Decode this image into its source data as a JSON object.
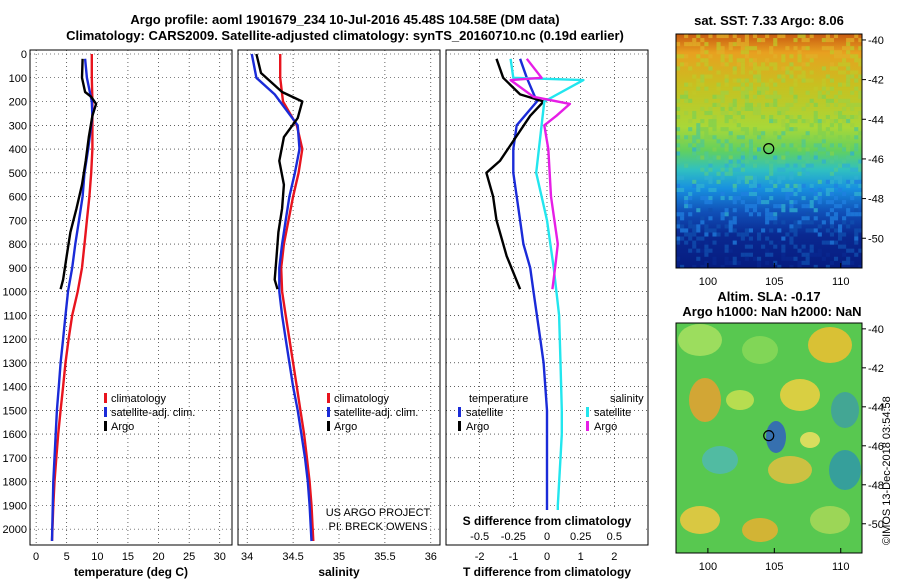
{
  "header": {
    "title_line1": "Argo profile: aoml 1901679_234 10-Jul-2016 45.48S 104.58E (DM data)",
    "title_line2": "Climatology: CARS2009. Satellite-adjusted climatology: synTS_20160710.nc (0.19d earlier)"
  },
  "colors": {
    "climatology": "#e8141e",
    "satellite": "#1a2bd8",
    "argo": "#000000",
    "satellite_salinity": "#22e6ee",
    "argo_salinity": "#e61ee6"
  },
  "chart_data": [
    {
      "type": "line",
      "name": "temperature",
      "xlabel": "temperature (deg C)",
      "xlim": [
        -1,
        32
      ],
      "xticks": [
        "0",
        "5",
        "10",
        "15",
        "20",
        "25",
        "30"
      ],
      "ylim": [
        0,
        2050
      ],
      "yticks": [
        "0",
        "100",
        "200",
        "300",
        "400",
        "500",
        "600",
        "700",
        "800",
        "900",
        "1000",
        "1100",
        "1200",
        "1300",
        "1400",
        "1500",
        "1600",
        "1700",
        "1800",
        "1900",
        "2000"
      ],
      "series": [
        {
          "name": "climatology",
          "x": [
            9.1,
            9.1,
            9.2,
            9.2,
            9.2,
            9.0,
            8.7,
            8.3,
            7.9,
            7.5,
            6.8,
            5.9,
            5.3,
            4.8,
            4.4,
            4.0,
            3.6,
            3.3,
            3.0,
            2.8,
            2.6
          ],
          "y": [
            0,
            100,
            200,
            300,
            400,
            500,
            600,
            700,
            800,
            900,
            1000,
            1100,
            1200,
            1300,
            1400,
            1500,
            1600,
            1700,
            1800,
            1900,
            2050
          ]
        },
        {
          "name": "satellite-adj. clim.",
          "x": [
            8.0,
            8.3,
            9.1,
            9.2,
            8.5,
            7.9,
            7.6,
            7.0,
            6.4,
            5.9,
            5.2,
            4.8,
            4.4,
            4.0,
            3.7,
            3.4,
            3.2,
            3.0,
            2.8,
            2.6
          ],
          "y": [
            20,
            100,
            200,
            260,
            400,
            500,
            600,
            700,
            800,
            900,
            1000,
            1100,
            1200,
            1300,
            1400,
            1500,
            1600,
            1700,
            1800,
            2050
          ]
        },
        {
          "name": "Argo",
          "x": [
            7.6,
            7.5,
            8.0,
            9.0,
            9.8,
            9.2,
            8.6,
            8.1,
            7.5,
            6.6,
            5.6,
            5.0,
            4.4,
            4.0
          ],
          "y": [
            20,
            100,
            160,
            180,
            210,
            260,
            350,
            450,
            550,
            650,
            750,
            850,
            950,
            990
          ]
        }
      ],
      "legend": [
        "climatology",
        "satellite-adj. clim.",
        "Argo"
      ]
    },
    {
      "type": "line",
      "name": "salinity",
      "xlabel": "salinity",
      "xlim": [
        33.9,
        36.1
      ],
      "xticks": [
        "34",
        "34.5",
        "35",
        "35.5",
        "36"
      ],
      "ylim": [
        0,
        2050
      ],
      "series": [
        {
          "name": "climatology",
          "x": [
            34.36,
            34.36,
            34.39,
            34.54,
            34.6,
            34.56,
            34.5,
            34.45,
            34.4,
            34.37,
            34.38,
            34.42,
            34.46,
            34.5,
            34.54,
            34.58,
            34.62,
            34.65,
            34.68,
            34.7,
            34.72
          ],
          "y": [
            0,
            100,
            200,
            300,
            400,
            500,
            600,
            700,
            800,
            900,
            1000,
            1100,
            1200,
            1300,
            1400,
            1500,
            1600,
            1700,
            1800,
            1900,
            2050
          ]
        },
        {
          "name": "satellite-adj. clim.",
          "x": [
            34.05,
            34.1,
            34.3,
            34.55,
            34.57,
            34.52,
            34.46,
            34.42,
            34.38,
            34.35,
            34.35,
            34.38,
            34.42,
            34.46,
            34.5,
            34.55,
            34.59,
            34.63,
            34.66,
            34.68,
            34.7
          ],
          "y": [
            0,
            100,
            170,
            300,
            400,
            500,
            600,
            700,
            800,
            900,
            1000,
            1100,
            1200,
            1300,
            1400,
            1500,
            1600,
            1700,
            1800,
            1900,
            2050
          ]
        },
        {
          "name": "Argo",
          "x": [
            34.1,
            34.15,
            34.38,
            34.6,
            34.55,
            34.4,
            34.35,
            34.4,
            34.38,
            34.34,
            34.32,
            34.3,
            34.33
          ],
          "y": [
            0,
            80,
            160,
            200,
            270,
            350,
            450,
            550,
            650,
            750,
            850,
            950,
            990
          ]
        }
      ],
      "legend": [
        "climatology",
        "satellite-adj. clim.",
        "Argo"
      ],
      "notes": [
        "US ARGO PROJECT",
        "PI: BRECK OWENS"
      ]
    },
    {
      "type": "line",
      "name": "difference",
      "xlabel": "T difference from climatology",
      "xlim": [
        -3,
        3
      ],
      "xticks": [
        "-2",
        "-1",
        "0",
        "1",
        "2"
      ],
      "s_label": "S difference from climatology",
      "s_xticks": [
        "-0.5",
        "-0.25",
        "0",
        "0.25",
        "0.5"
      ],
      "ylim": [
        0,
        2050
      ],
      "series": [
        {
          "name": "temperature satellite",
          "x": [
            -0.8,
            -0.6,
            -0.3,
            -0.9,
            -1.0,
            -1.0,
            -0.9,
            -0.8,
            -0.7,
            -0.5,
            -0.4,
            -0.3,
            -0.2,
            -0.1,
            -0.05,
            0.0,
            0.0,
            0.0,
            0.0
          ],
          "y": [
            20,
            100,
            200,
            300,
            400,
            500,
            600,
            700,
            800,
            900,
            1000,
            1100,
            1200,
            1300,
            1400,
            1500,
            1600,
            1700,
            2050
          ]
        },
        {
          "name": "temperature Argo",
          "x": [
            -1.5,
            -1.3,
            -0.8,
            -0.1,
            -0.5,
            -1.4,
            -1.8,
            -1.6,
            -1.5,
            -1.2,
            -0.8
          ],
          "y": [
            20,
            100,
            170,
            200,
            260,
            450,
            500,
            600,
            700,
            850,
            990
          ]
        },
        {
          "name": "salinity satellite",
          "x": [
            -0.27,
            -0.25,
            0.27,
            -0.02,
            -0.06,
            -0.08,
            -0.04,
            0.0,
            0.05,
            0.09,
            0.1,
            0.11,
            0.11,
            0.1,
            0.08,
            0.08
          ],
          "y": [
            20,
            100,
            110,
            200,
            400,
            500,
            600,
            700,
            900,
            1100,
            1300,
            1500,
            1600,
            1700,
            1900,
            2050
          ]
        },
        {
          "name": "salinity Argo",
          "x": [
            -0.15,
            -0.04,
            -0.27,
            -0.1,
            0.17,
            0.07,
            -0.02,
            0.01,
            0.03,
            0.08,
            0.06,
            0.04
          ],
          "y": [
            20,
            100,
            110,
            180,
            210,
            260,
            300,
            400,
            600,
            800,
            900,
            990
          ]
        }
      ],
      "legend_temperature": {
        "title": "temperature",
        "items": [
          "satellite",
          "Argo"
        ]
      },
      "legend_salinity": {
        "title": "salinity",
        "items": [
          "satellite",
          "Argo"
        ]
      }
    },
    {
      "type": "heatmap",
      "name": "sst_map",
      "title": "sat. SST: 7.33 Argo: 8.06",
      "xticks": [
        "100",
        "105",
        "110"
      ],
      "yticks": [
        "-40",
        "-42",
        "-44",
        "-46",
        "-48",
        "-50"
      ],
      "xlim": [
        97.6,
        111.6
      ],
      "ylim": [
        -51.5,
        -39.7
      ],
      "marker": {
        "lon": 104.58,
        "lat": -45.48
      }
    },
    {
      "type": "heatmap",
      "name": "sla_map",
      "title_line1": "Altim. SLA: -0.17",
      "title_line2": "Argo h1000: NaN h2000: NaN",
      "xticks": [
        "100",
        "105",
        "110"
      ],
      "yticks": [
        "-40",
        "-42",
        "-44",
        "-46",
        "-48",
        "-50"
      ],
      "xlim": [
        97.6,
        111.6
      ],
      "ylim": [
        -51.5,
        -39.7
      ],
      "marker": {
        "lon": 104.58,
        "lat": -45.48
      }
    }
  ],
  "footer": {
    "stamp": "©IMOS 13-Dec-2018 03:54:58"
  }
}
